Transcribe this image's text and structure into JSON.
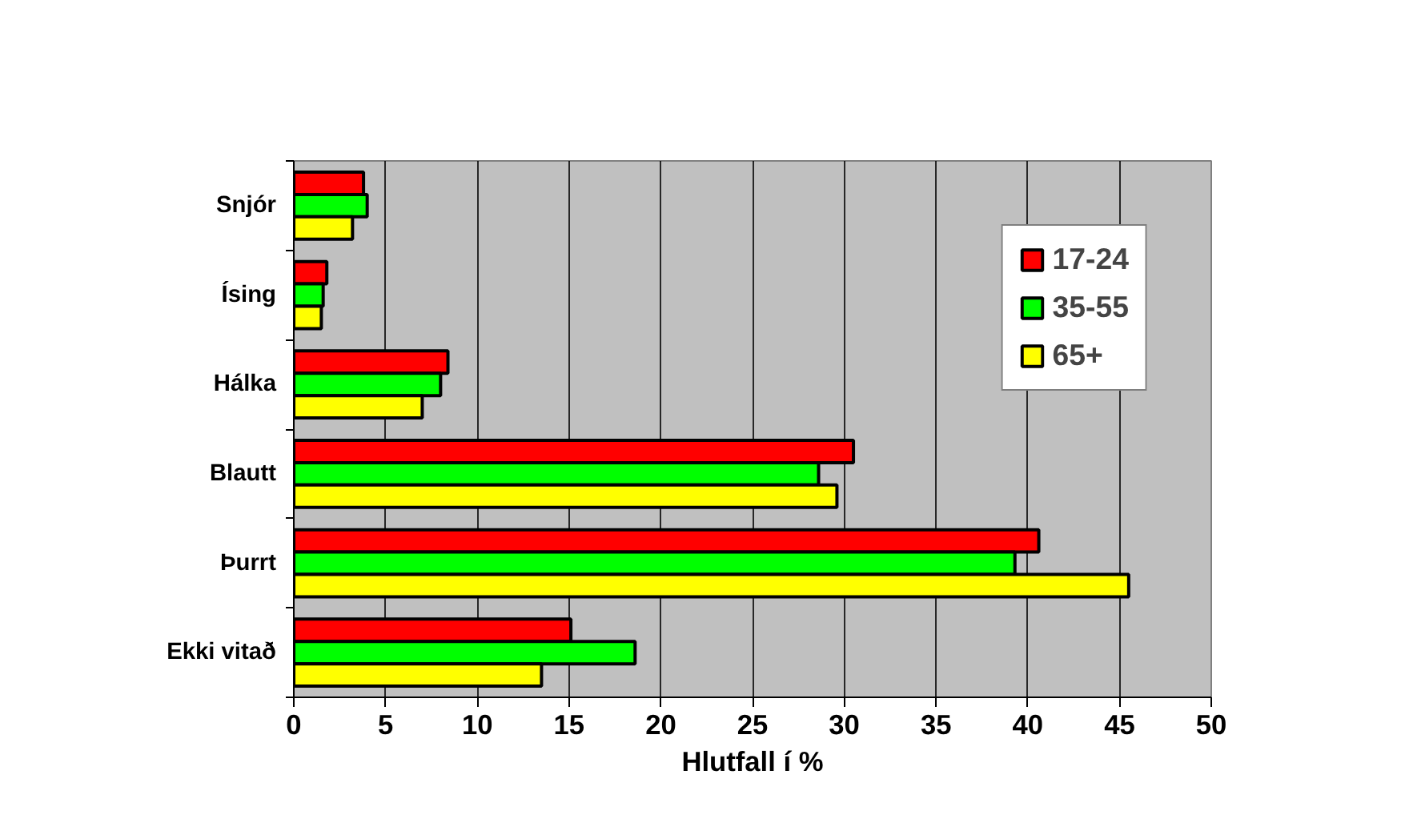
{
  "chart_data": {
    "type": "bar",
    "orientation": "horizontal",
    "xlabel": "Hlutfall í %",
    "categories": [
      "Snjór",
      "Ísing",
      "Hálka",
      "Blautt",
      "Þurrt",
      "Ekki vitað"
    ],
    "series": [
      {
        "name": "17-24",
        "color": "#ff0000",
        "values": [
          3.8,
          1.8,
          8.4,
          30.5,
          40.6,
          15.1
        ]
      },
      {
        "name": "35-55",
        "color": "#00ff00",
        "values": [
          4.0,
          1.6,
          8.0,
          28.6,
          39.3,
          18.6
        ]
      },
      {
        "name": "65+",
        "color": "#ffff00",
        "values": [
          3.2,
          1.5,
          7.0,
          29.6,
          45.5,
          13.5
        ]
      }
    ],
    "xlim": [
      0,
      50
    ],
    "xticks": [
      0,
      5,
      10,
      15,
      20,
      25,
      30,
      35,
      40,
      45,
      50
    ],
    "grid": "x",
    "legend": "top right"
  }
}
